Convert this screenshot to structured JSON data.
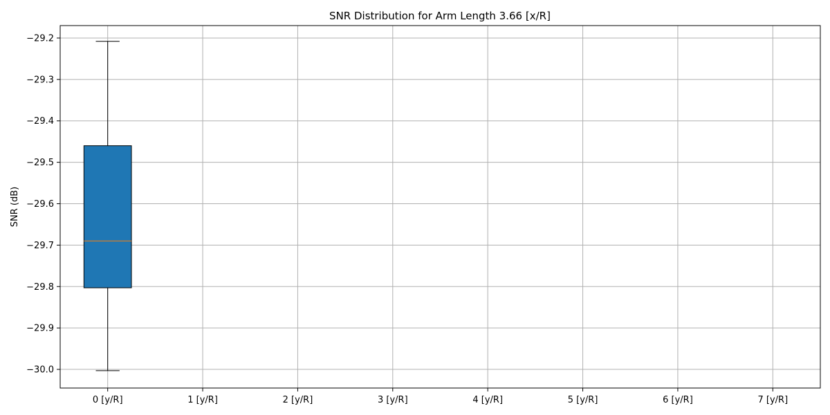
{
  "chart_data": {
    "type": "box",
    "title": "SNR Distribution for Arm Length 3.66 [x/R]",
    "xlabel": "",
    "ylabel": "SNR (dB)",
    "categories": [
      "0 [y/R]",
      "1 [y/R]",
      "2 [y/R]",
      "3 [y/R]",
      "4 [y/R]",
      "5 [y/R]",
      "6 [y/R]",
      "7 [y/R]"
    ],
    "yticks": [
      -29.2,
      -29.3,
      -29.4,
      -29.5,
      -29.6,
      -29.7,
      -29.8,
      -29.9,
      -30.0
    ],
    "ytick_labels": [
      "−29.2",
      "−29.3",
      "−29.4",
      "−29.5",
      "−29.6",
      "−29.7",
      "−29.8",
      "−29.9",
      "−30.0"
    ],
    "ylim": [
      -30.045,
      -29.17
    ],
    "grid": true,
    "boxes": [
      {
        "category": "0 [y/R]",
        "whisker_low": -30.003,
        "q1": -29.803,
        "median": -29.69,
        "q3": -29.46,
        "whisker_high": -29.208
      }
    ],
    "colors": {
      "box_fill": "#1f77b4",
      "median": "#ff7f0e",
      "grid": "#b0b0b0",
      "edge": "#000000"
    }
  }
}
